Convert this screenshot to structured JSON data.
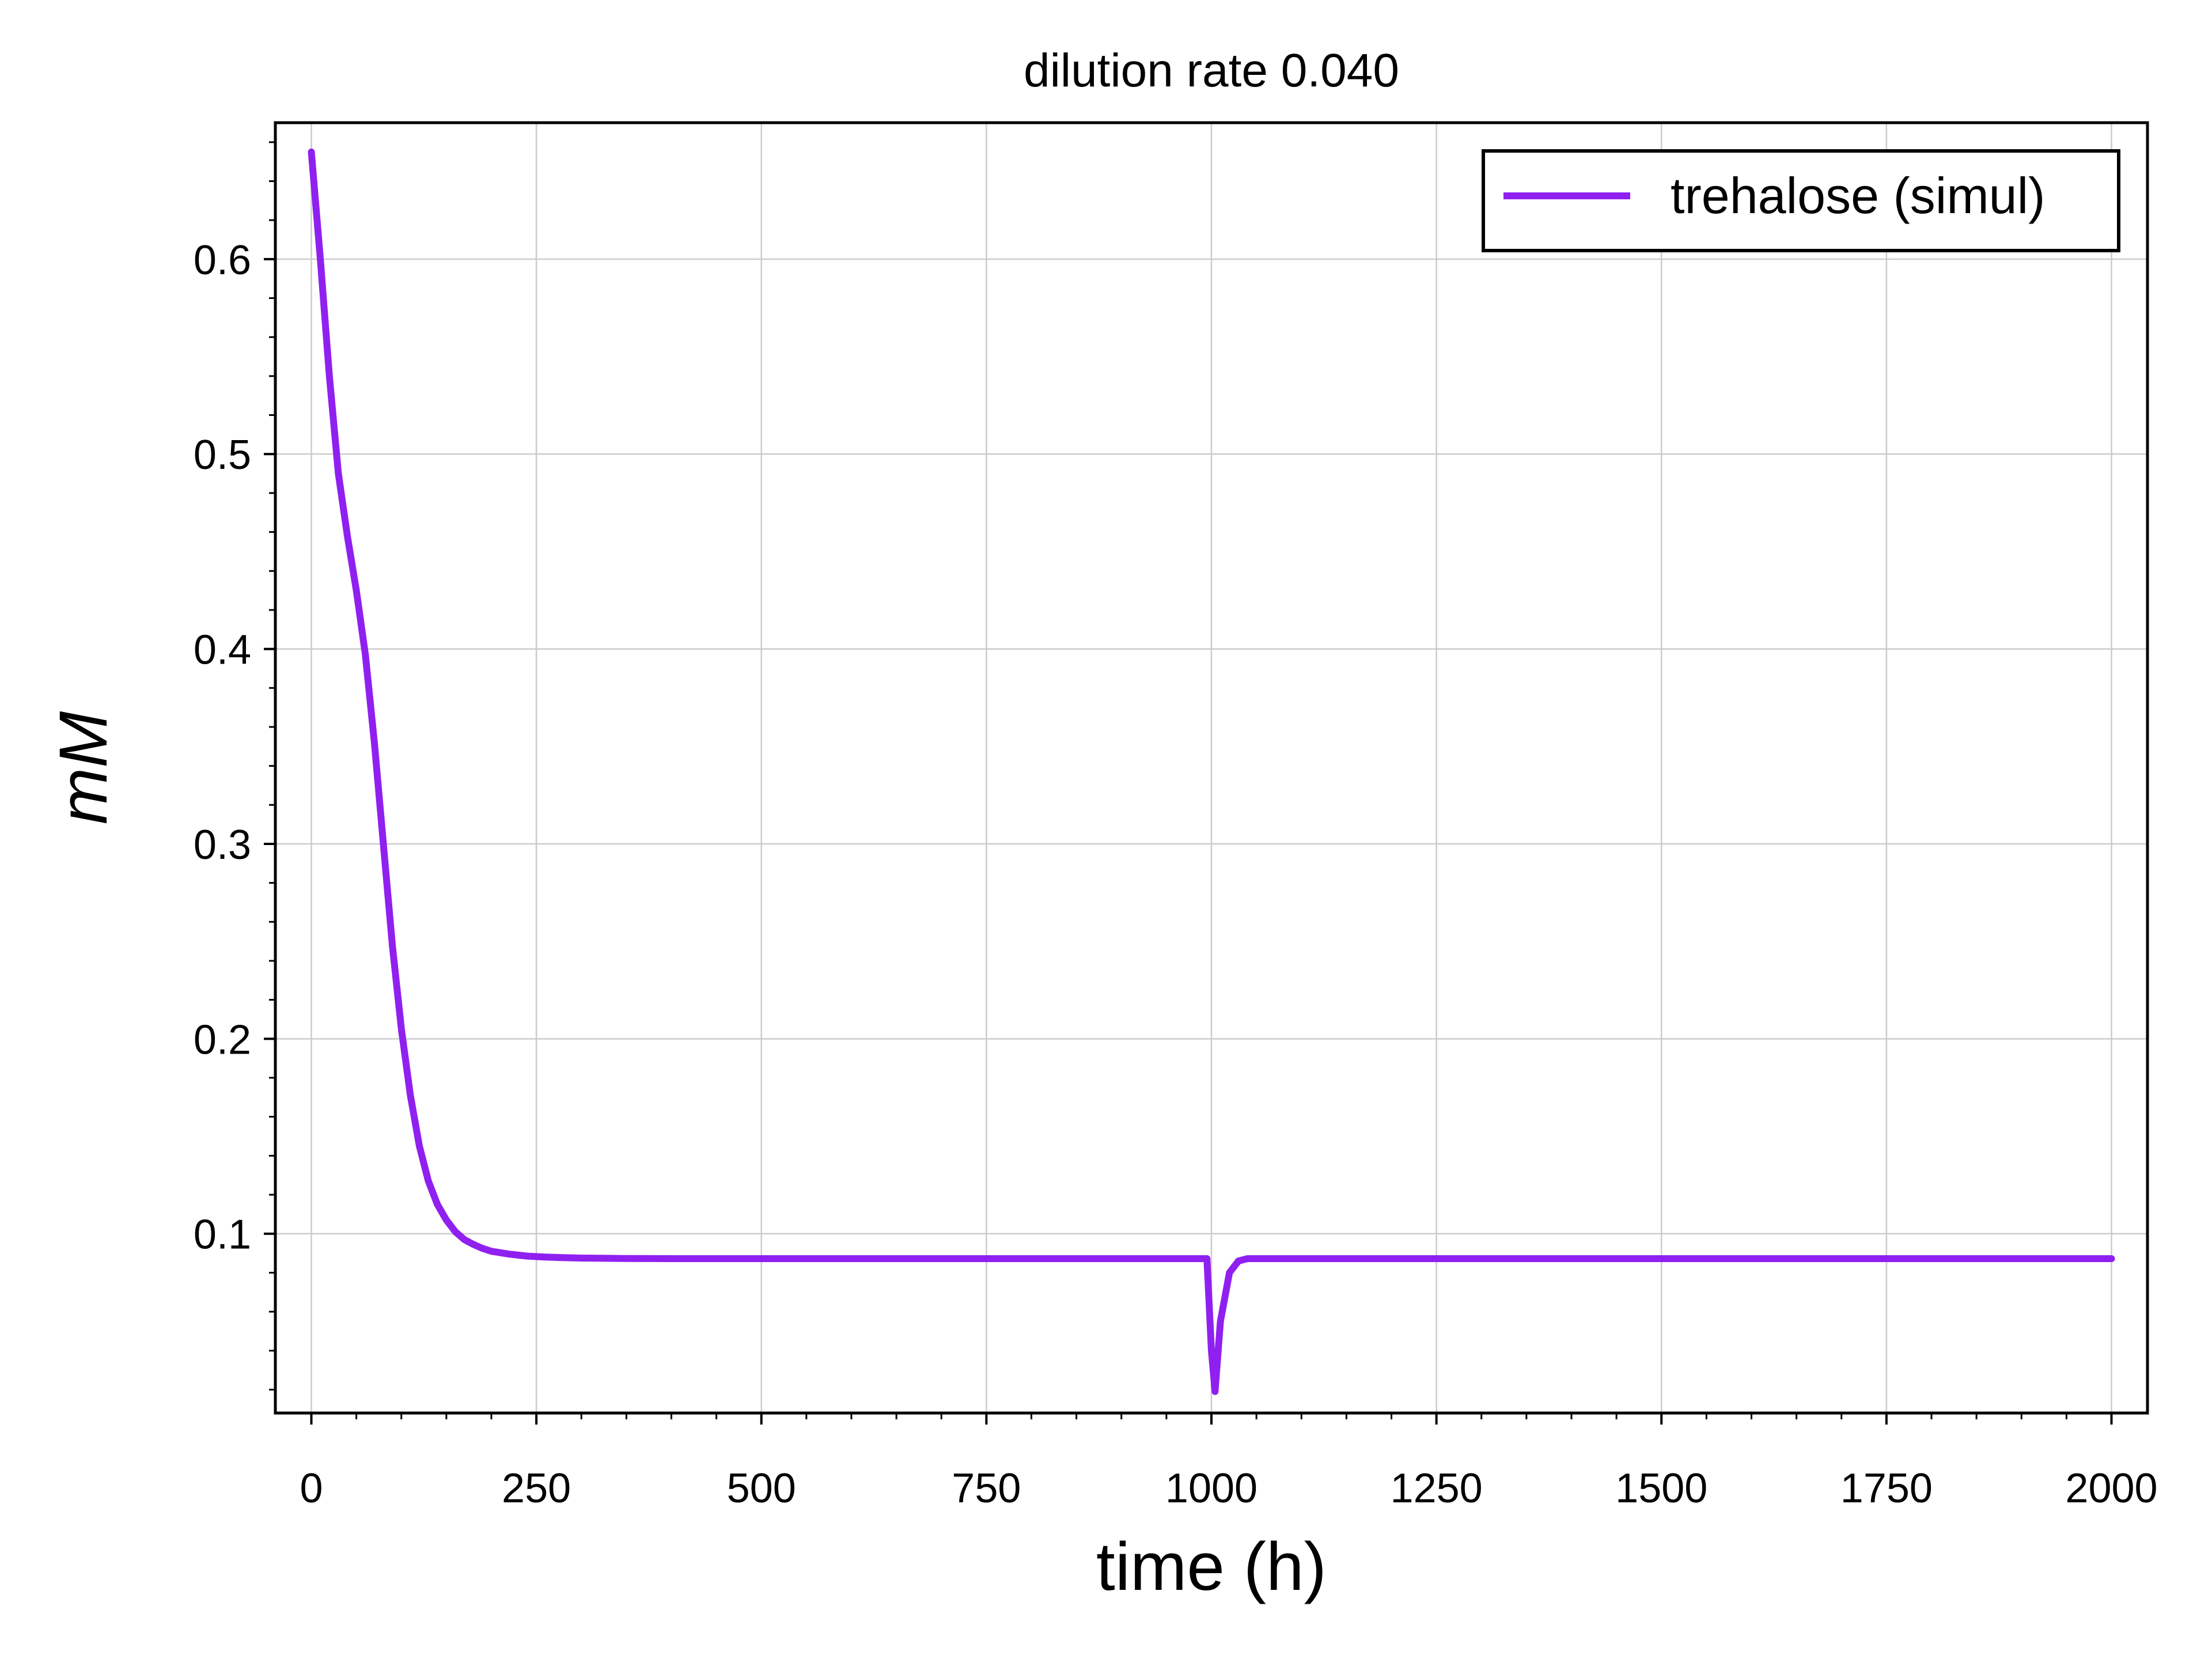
{
  "chart_data": {
    "type": "line",
    "title": "dilution rate 0.040",
    "xlabel": "time (h)",
    "ylabel": "mM",
    "xlim": [
      -40,
      2040
    ],
    "ylim": [
      0.008,
      0.67
    ],
    "xticks": [
      0,
      250,
      500,
      750,
      1000,
      1250,
      1500,
      1750,
      2000
    ],
    "xtick_labels": [
      "0",
      "250",
      "500",
      "750",
      "1000",
      "1250",
      "1500",
      "1750",
      "2000"
    ],
    "yticks": [
      0.1,
      0.2,
      0.3,
      0.4,
      0.5,
      0.6
    ],
    "ytick_labels": [
      "0.1",
      "0.2",
      "0.3",
      "0.4",
      "0.5",
      "0.6"
    ],
    "x_minor_step": 50,
    "y_minor_step": 0.02,
    "grid": true,
    "legend_position": "top-right",
    "series": [
      {
        "name": "trehalose (simul)",
        "color": "#9020F0",
        "x": [
          0,
          10,
          20,
          30,
          40,
          50,
          60,
          70,
          80,
          90,
          100,
          110,
          120,
          130,
          140,
          150,
          160,
          170,
          180,
          190,
          200,
          220,
          240,
          260,
          280,
          300,
          350,
          400,
          500,
          600,
          700,
          800,
          900,
          995,
          1000,
          1004,
          1010,
          1020,
          1030,
          1040,
          1100,
          1200,
          1400,
          1600,
          1800,
          2000
        ],
        "y": [
          0.655,
          0.6,
          0.54,
          0.49,
          0.458,
          0.43,
          0.397,
          0.352,
          0.3,
          0.248,
          0.205,
          0.171,
          0.145,
          0.127,
          0.115,
          0.107,
          0.101,
          0.097,
          0.0945,
          0.0925,
          0.091,
          0.0895,
          0.0885,
          0.088,
          0.0877,
          0.0875,
          0.0873,
          0.0872,
          0.0872,
          0.0872,
          0.0872,
          0.0872,
          0.0872,
          0.0872,
          0.04,
          0.019,
          0.055,
          0.08,
          0.086,
          0.0872,
          0.0872,
          0.0872,
          0.0872,
          0.0872,
          0.0872,
          0.0872
        ]
      }
    ]
  }
}
